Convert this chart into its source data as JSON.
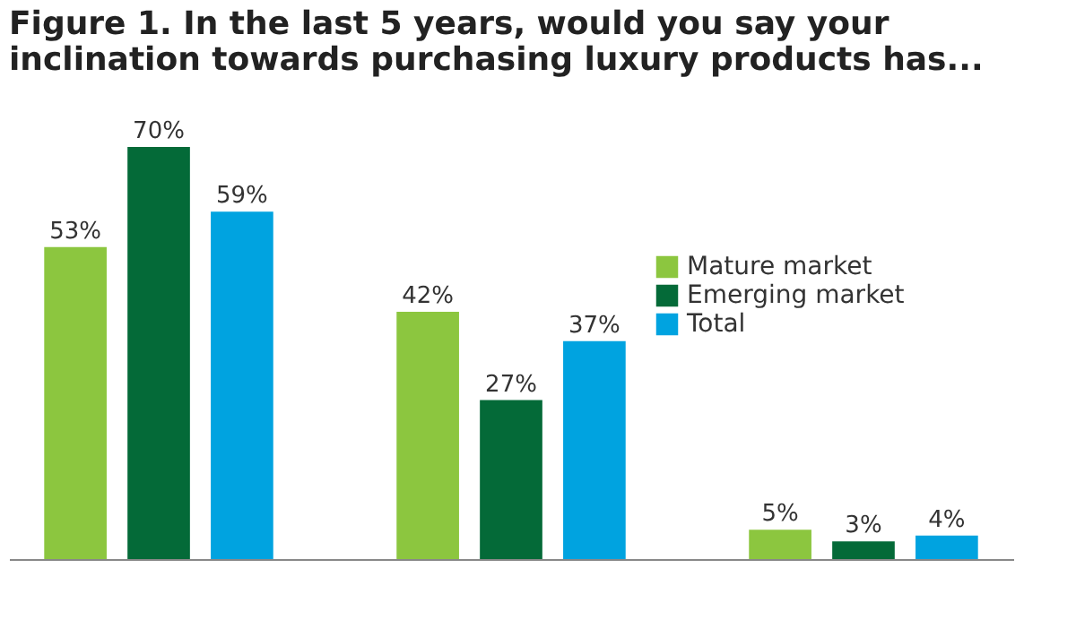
{
  "chart_data": {
    "type": "bar",
    "title": [
      "Figure 1. In the last 5 years, would you say your",
      "inclination towards purchasing luxury products has..."
    ],
    "categories": [
      null,
      null,
      null
    ],
    "series": [
      {
        "name": "Mature market",
        "color": "#8cc63f",
        "values": [
          53,
          42,
          5
        ],
        "value_labels": [
          "53%",
          "42%",
          "5%"
        ]
      },
      {
        "name": "Emerging market",
        "color": "#046a38",
        "values": [
          70,
          27,
          3
        ],
        "value_labels": [
          "70%",
          "27%",
          "3%"
        ]
      },
      {
        "name": "Total",
        "color": "#00a3e0",
        "values": [
          59,
          37,
          4
        ],
        "value_labels": [
          "59%",
          "37%",
          "4%"
        ]
      }
    ],
    "legend": "top right",
    "grid": false,
    "tick_labels": false
  }
}
